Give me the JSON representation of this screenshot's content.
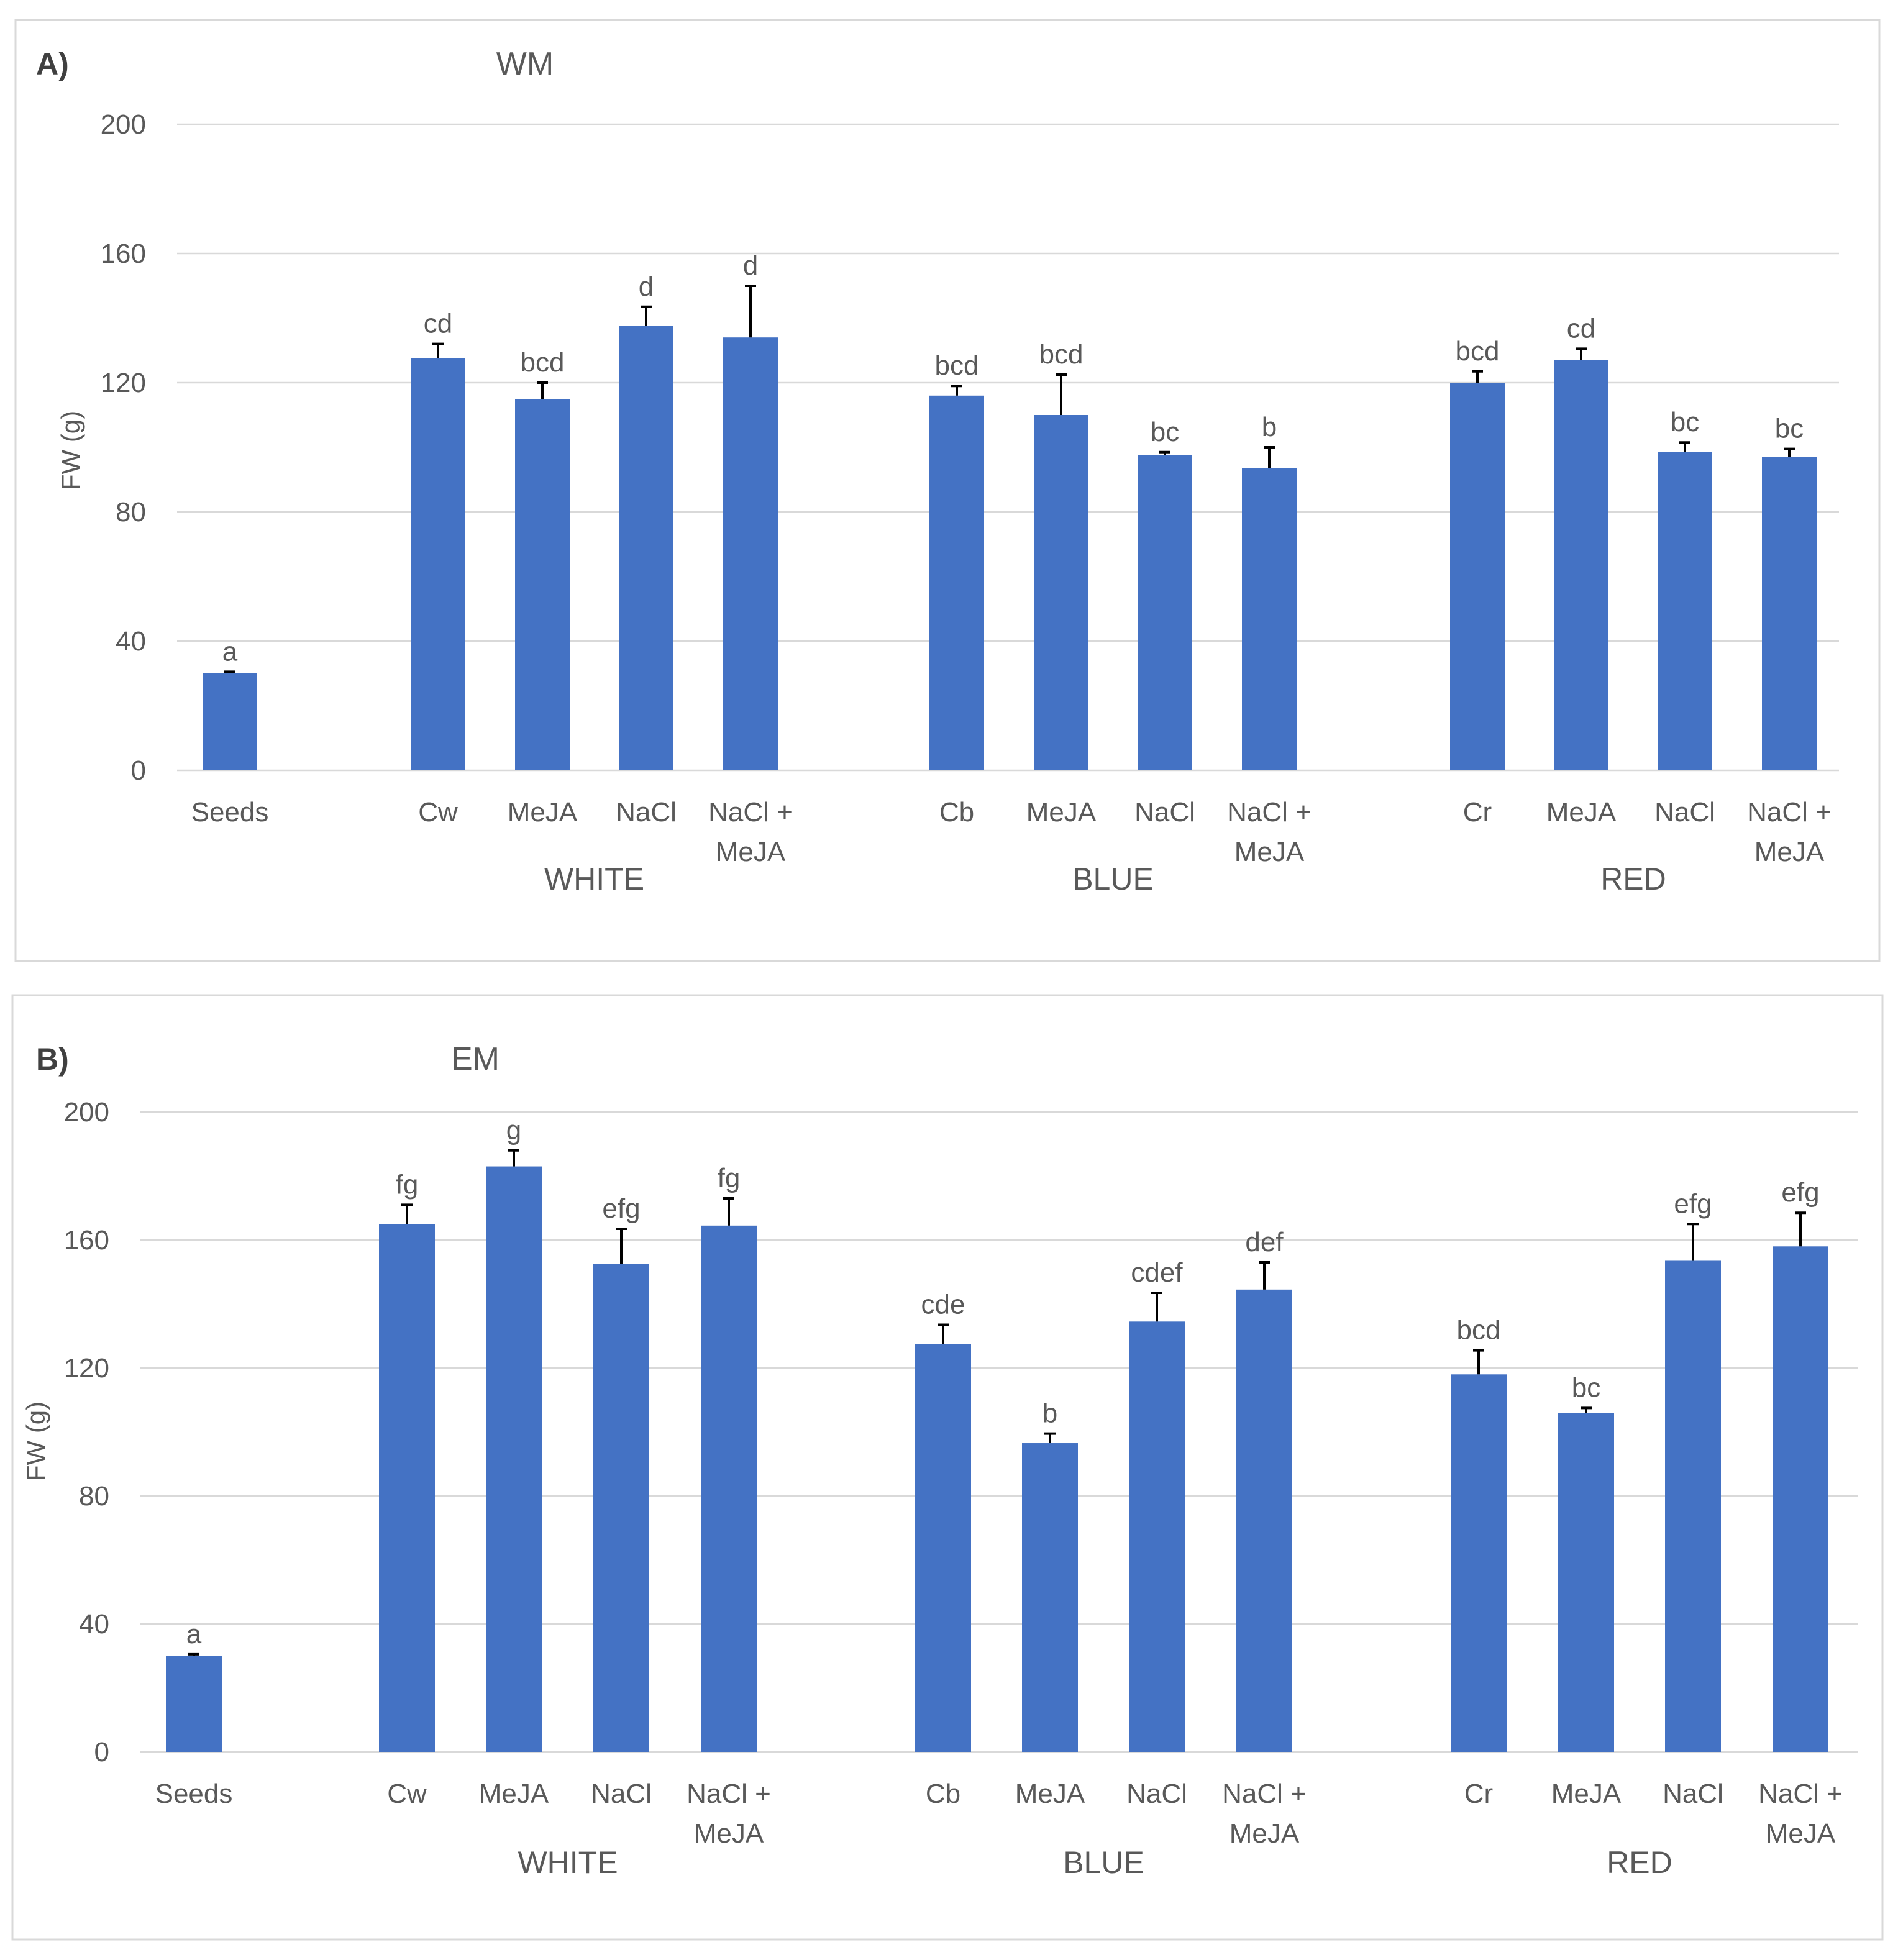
{
  "colors": {
    "bar": "#4472c4",
    "gridline": "#d9d9d9",
    "text": "#595959",
    "error_bar": "#000000"
  },
  "chart_data": [
    {
      "type": "bar",
      "panel_label": "A)",
      "title": "WM",
      "ylabel": "FW (g)",
      "ylim": [
        0,
        200
      ],
      "yticks": [
        "0",
        "40",
        "80",
        "120",
        "160",
        "200"
      ],
      "groups": [
        {
          "name": "",
          "categories": [
            {
              "label": [
                "Seeds"
              ],
              "value": 30,
              "error": 0.5,
              "letter": "a"
            }
          ]
        },
        {
          "name": "WHITE",
          "categories": [
            {
              "label": [
                "Cw"
              ],
              "value": 127.5,
              "error": 4.5,
              "letter": "cd"
            },
            {
              "label": [
                "MeJA"
              ],
              "value": 115,
              "error": 5,
              "letter": "bcd"
            },
            {
              "label": [
                "NaCl"
              ],
              "value": 137.5,
              "error": 6,
              "letter": "d"
            },
            {
              "label": [
                "NaCl +",
                "MeJA"
              ],
              "value": 134,
              "error": 16,
              "letter": "d"
            }
          ]
        },
        {
          "name": "BLUE",
          "categories": [
            {
              "label": [
                "Cb"
              ],
              "value": 116,
              "error": 3,
              "letter": "bcd"
            },
            {
              "label": [
                "MeJA"
              ],
              "value": 110,
              "error": 12.5,
              "letter": "bcd"
            },
            {
              "label": [
                "NaCl"
              ],
              "value": 97.5,
              "error": 1,
              "letter": "bc"
            },
            {
              "label": [
                "NaCl +",
                "MeJA"
              ],
              "value": 93.5,
              "error": 6.5,
              "letter": "b"
            }
          ]
        },
        {
          "name": "RED",
          "categories": [
            {
              "label": [
                "Cr"
              ],
              "value": 120,
              "error": 3.5,
              "letter": "bcd"
            },
            {
              "label": [
                "MeJA"
              ],
              "value": 127,
              "error": 3.5,
              "letter": "cd"
            },
            {
              "label": [
                "NaCl"
              ],
              "value": 98.5,
              "error": 3,
              "letter": "bc"
            },
            {
              "label": [
                "NaCl +",
                "MeJA"
              ],
              "value": 97,
              "error": 2.5,
              "letter": "bc"
            }
          ]
        }
      ]
    },
    {
      "type": "bar",
      "panel_label": "B)",
      "title": "EM",
      "ylabel": "FW (g)",
      "ylim": [
        0,
        200
      ],
      "yticks": [
        "0",
        "40",
        "80",
        "120",
        "160",
        "200"
      ],
      "groups": [
        {
          "name": "",
          "categories": [
            {
              "label": [
                "Seeds"
              ],
              "value": 30,
              "error": 0.5,
              "letter": "a"
            }
          ]
        },
        {
          "name": "WHITE",
          "categories": [
            {
              "label": [
                "Cw"
              ],
              "value": 165,
              "error": 6,
              "letter": "fg"
            },
            {
              "label": [
                "MeJA"
              ],
              "value": 183,
              "error": 5,
              "letter": "g"
            },
            {
              "label": [
                "NaCl"
              ],
              "value": 152.5,
              "error": 11,
              "letter": "efg"
            },
            {
              "label": [
                "NaCl +",
                "MeJA"
              ],
              "value": 164.5,
              "error": 8.5,
              "letter": "fg"
            }
          ]
        },
        {
          "name": "BLUE",
          "categories": [
            {
              "label": [
                "Cb"
              ],
              "value": 127.5,
              "error": 6,
              "letter": "cde"
            },
            {
              "label": [
                "MeJA"
              ],
              "value": 96.5,
              "error": 3,
              "letter": "b"
            },
            {
              "label": [
                "NaCl"
              ],
              "value": 134.5,
              "error": 9,
              "letter": "cdef"
            },
            {
              "label": [
                "NaCl +",
                "MeJA"
              ],
              "value": 144.5,
              "error": 8.5,
              "letter": "def"
            }
          ]
        },
        {
          "name": "RED",
          "categories": [
            {
              "label": [
                "Cr"
              ],
              "value": 118,
              "error": 7.5,
              "letter": "bcd"
            },
            {
              "label": [
                "MeJA"
              ],
              "value": 106,
              "error": 1.5,
              "letter": "bc"
            },
            {
              "label": [
                "NaCl"
              ],
              "value": 153.5,
              "error": 11.5,
              "letter": "efg"
            },
            {
              "label": [
                "NaCl +",
                "MeJA"
              ],
              "value": 158,
              "error": 10.5,
              "letter": "efg"
            }
          ]
        }
      ]
    }
  ]
}
